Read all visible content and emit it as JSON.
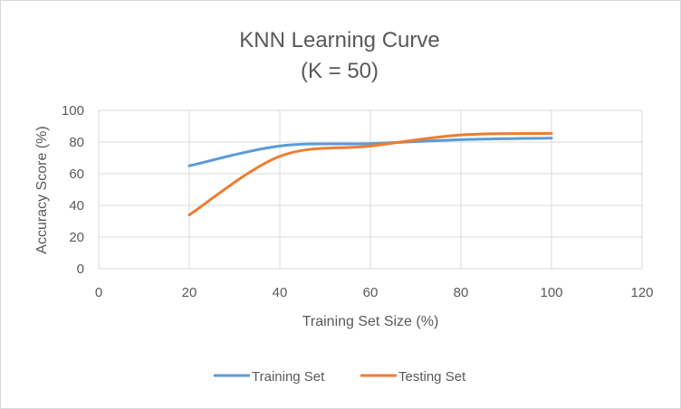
{
  "chart_data": {
    "type": "line",
    "title_lines": [
      "KNN Learning Curve",
      "(K = 50)"
    ],
    "xlabel": "Training Set Size (%)",
    "ylabel": "Accuracy Score (%)",
    "xlim": [
      0,
      120
    ],
    "ylim": [
      0,
      100
    ],
    "xticks": [
      0,
      20,
      40,
      60,
      80,
      100,
      120
    ],
    "yticks": [
      0,
      20,
      40,
      60,
      80,
      100
    ],
    "grid": true,
    "legend_position": "bottom",
    "x": [
      20,
      40,
      60,
      80,
      100
    ],
    "series": [
      {
        "name": "Training Set",
        "color": "#5b9bd5",
        "values": [
          65,
          77.5,
          79,
          81.5,
          82.5
        ]
      },
      {
        "name": "Testing Set",
        "color": "#ed7d31",
        "values": [
          34,
          71,
          77.5,
          84.5,
          85.5
        ]
      }
    ]
  }
}
